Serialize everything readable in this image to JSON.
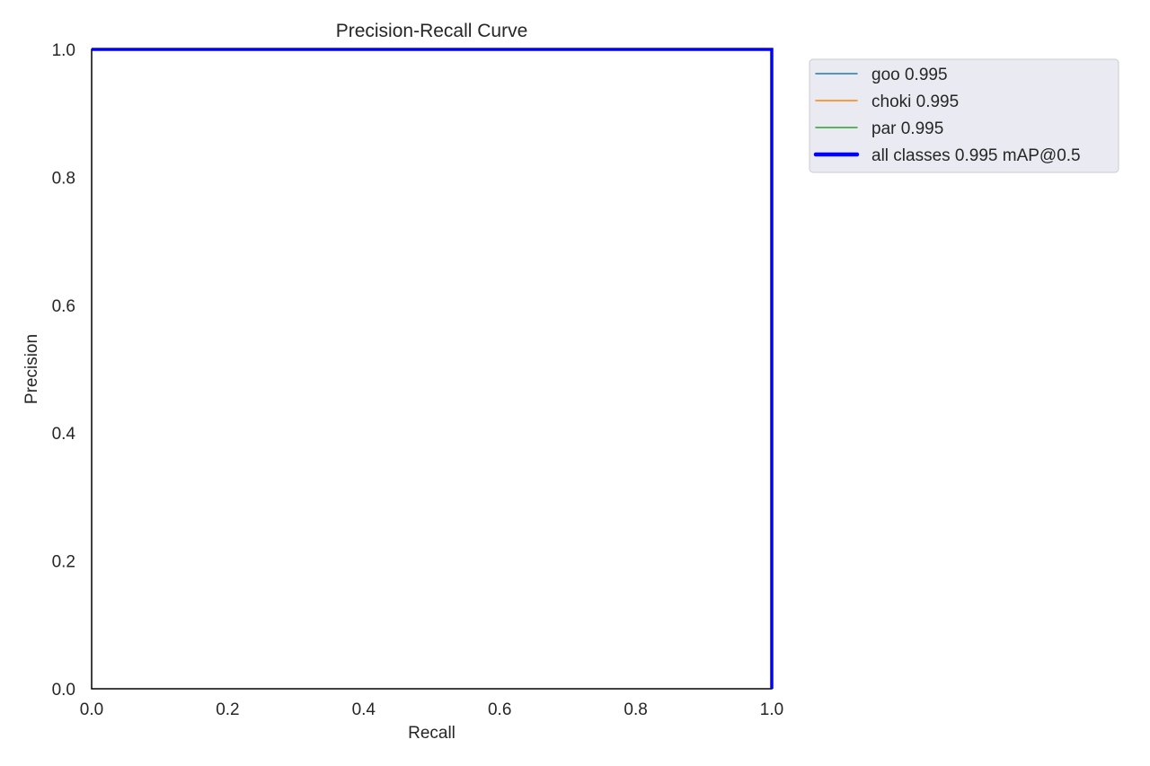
{
  "chart_data": {
    "type": "line",
    "title": "Precision-Recall Curve",
    "xlabel": "Recall",
    "ylabel": "Precision",
    "xlim": [
      0,
      1
    ],
    "ylim": [
      0,
      1
    ],
    "xticks": [
      "0.0",
      "0.2",
      "0.4",
      "0.6",
      "0.8",
      "1.0"
    ],
    "yticks": [
      "0.0",
      "0.2",
      "0.4",
      "0.6",
      "0.8",
      "1.0"
    ],
    "grid": false,
    "legend_position": "outside-top-right",
    "series": [
      {
        "name": "goo 0.995",
        "color": "#1f77b4",
        "width": "thin",
        "x": [
          0,
          0.995,
          1,
          1
        ],
        "y": [
          1,
          1,
          1,
          0
        ]
      },
      {
        "name": "choki 0.995",
        "color": "#ff7f0e",
        "width": "thin",
        "x": [
          0,
          0.995,
          1,
          1
        ],
        "y": [
          1,
          1,
          1,
          0
        ]
      },
      {
        "name": "par 0.995",
        "color": "#2ca02c",
        "width": "thin",
        "x": [
          0,
          0.995,
          1,
          1
        ],
        "y": [
          1,
          1,
          1,
          0
        ]
      },
      {
        "name": "all classes 0.995 mAP@0.5",
        "color": "#0000ff",
        "width": "thick",
        "x": [
          0,
          0.995,
          1,
          1
        ],
        "y": [
          1,
          1,
          1,
          0
        ]
      }
    ]
  }
}
